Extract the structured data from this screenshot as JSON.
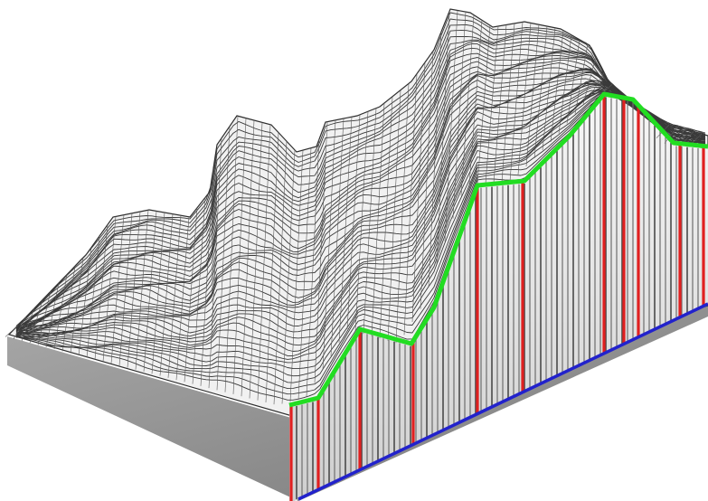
{
  "figure": {
    "description_visible_text": "",
    "colors": {
      "background": "#ffffff",
      "mesh_line": "#3a3a3a",
      "terrain_fill": "#f2f2f2",
      "base_plate": "#8e8e8e",
      "profile_line": "#22dd22",
      "sample_lines": "#e02020",
      "baseline": "#2222cc"
    },
    "profile": {
      "sample_count": 14
    }
  }
}
